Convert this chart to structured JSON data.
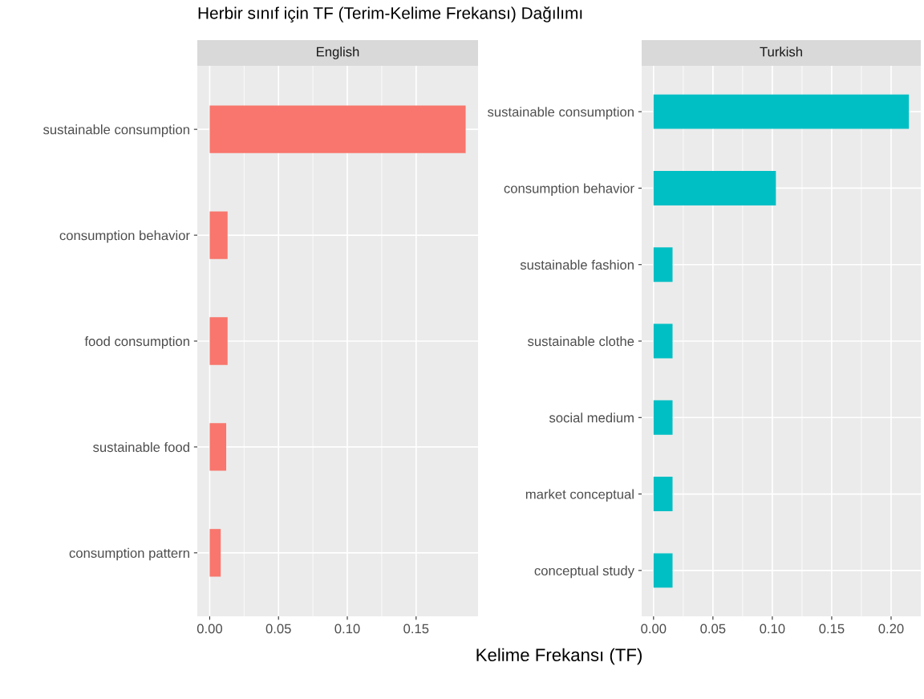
{
  "chart_data": [
    {
      "type": "bar",
      "orientation": "horizontal",
      "title": "English",
      "categories": [
        "sustainable consumption",
        "consumption behavior",
        "food consumption",
        "sustainable food",
        "consumption pattern"
      ],
      "values": [
        0.186,
        0.013,
        0.013,
        0.012,
        0.008
      ],
      "color": "#f8766d",
      "xlim": [
        -0.009,
        0.195
      ],
      "xticks": [
        {
          "value": 0,
          "label": "0.00"
        },
        {
          "value": 0.05,
          "label": "0.05"
        },
        {
          "value": 0.1,
          "label": "0.10"
        },
        {
          "value": 0.15,
          "label": "0.15"
        }
      ],
      "grid": true
    },
    {
      "type": "bar",
      "orientation": "horizontal",
      "title": "Turkish",
      "categories": [
        "sustainable consumption",
        "consumption behavior",
        "sustainable fashion",
        "sustainable clothe",
        "social medium",
        "market conceptual",
        "conceptual study"
      ],
      "values": [
        0.215,
        0.103,
        0.016,
        0.016,
        0.016,
        0.016,
        0.016
      ],
      "color": "#00bfc4",
      "xlim": [
        -0.01,
        0.225
      ],
      "xticks": [
        {
          "value": 0,
          "label": "0.00"
        },
        {
          "value": 0.05,
          "label": "0.05"
        },
        {
          "value": 0.1,
          "label": "0.10"
        },
        {
          "value": 0.15,
          "label": "0.15"
        },
        {
          "value": 0.2,
          "label": "0.20"
        }
      ],
      "grid": true
    },
    {
      "type": "other",
      "title": "Herbir sınıf için TF (Terim-Kelime Frekansı) Dağılımı",
      "xlabel": "Kelime Frekansı (TF)"
    }
  ]
}
